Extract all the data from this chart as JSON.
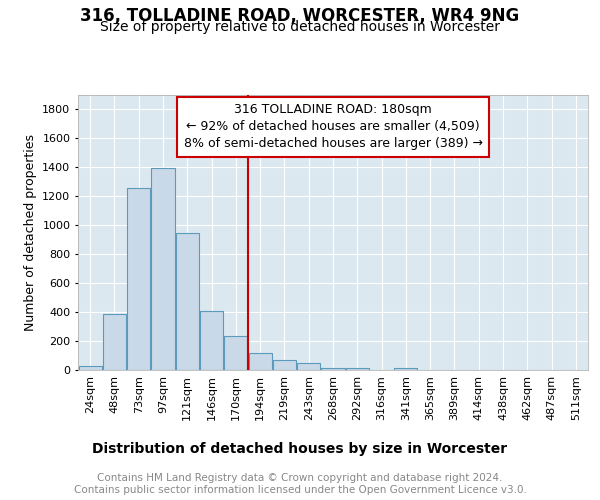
{
  "title": "316, TOLLADINE ROAD, WORCESTER, WR4 9NG",
  "subtitle": "Size of property relative to detached houses in Worcester",
  "xlabel": "Distribution of detached houses by size in Worcester",
  "ylabel": "Number of detached properties",
  "bar_labels": [
    "24sqm",
    "48sqm",
    "73sqm",
    "97sqm",
    "121sqm",
    "146sqm",
    "170sqm",
    "194sqm",
    "219sqm",
    "243sqm",
    "268sqm",
    "292sqm",
    "316sqm",
    "341sqm",
    "365sqm",
    "389sqm",
    "414sqm",
    "438sqm",
    "462sqm",
    "487sqm",
    "511sqm"
  ],
  "bar_values": [
    30,
    390,
    1260,
    1395,
    950,
    410,
    235,
    120,
    70,
    45,
    15,
    15,
    0,
    15,
    0,
    0,
    0,
    0,
    0,
    0,
    0
  ],
  "bar_color": "#c9d9e8",
  "bar_edgecolor": "#5b9aba",
  "vline_x": 6.5,
  "vline_color": "#cc0000",
  "annotation_line1": "316 TOLLADINE ROAD: 180sqm",
  "annotation_line2": "← 92% of detached houses are smaller (4,509)",
  "annotation_line3": "8% of semi-detached houses are larger (389) →",
  "annotation_box_facecolor": "#ffffff",
  "annotation_box_edgecolor": "#cc0000",
  "ylim": [
    0,
    1900
  ],
  "yticks": [
    0,
    200,
    400,
    600,
    800,
    1000,
    1200,
    1400,
    1600,
    1800
  ],
  "plot_bg_color": "#dce8f0",
  "footer_text": "Contains HM Land Registry data © Crown copyright and database right 2024.\nContains public sector information licensed under the Open Government Licence v3.0.",
  "title_fontsize": 12,
  "subtitle_fontsize": 10,
  "xlabel_fontsize": 10,
  "ylabel_fontsize": 9,
  "annotation_fontsize": 9,
  "footer_fontsize": 7.5,
  "tick_fontsize": 8
}
